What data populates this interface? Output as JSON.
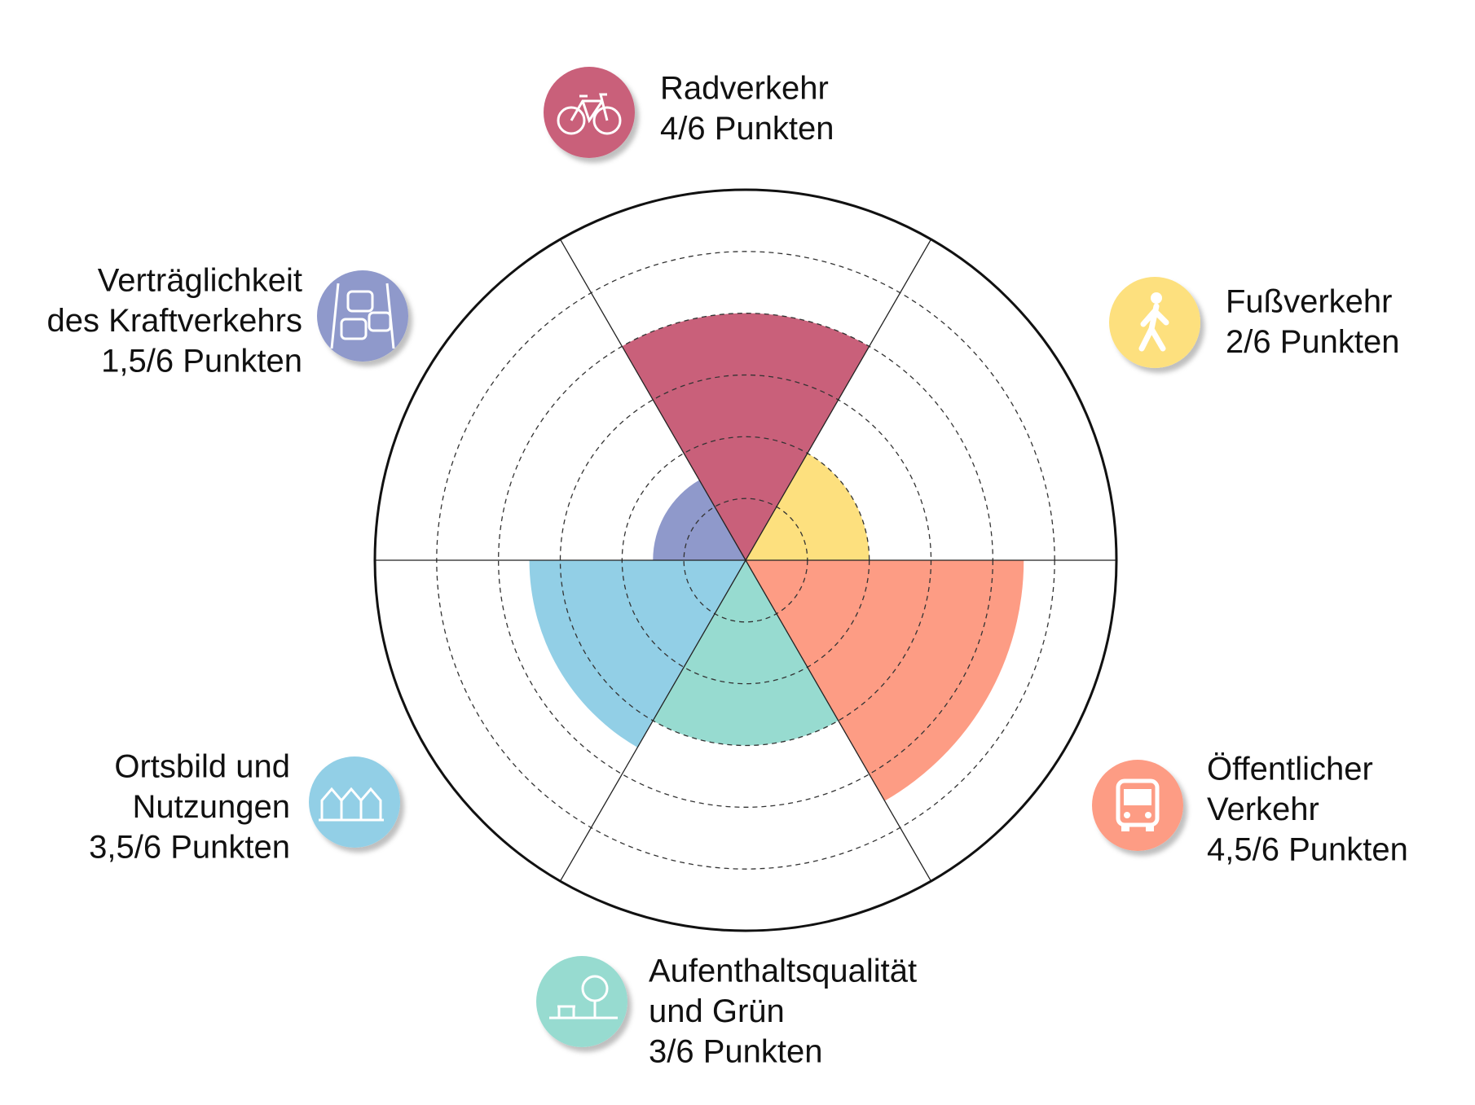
{
  "chart_data": {
    "type": "polar-area",
    "categories": [
      [
        "Radverkehr"
      ],
      [
        "Fußverkehr"
      ],
      [
        "Öffentlicher",
        "Verkehr"
      ],
      [
        "Aufenthaltsqualität",
        "und Grün"
      ],
      [
        "Ortsbild und",
        "Nutzungen"
      ],
      [
        "Verträglichkeit",
        "des Kraftverkehrs"
      ]
    ],
    "values": [
      4,
      2,
      4.5,
      3,
      3.5,
      1.5
    ],
    "value_labels": [
      "4/6 Punkten",
      "2/6 Punkten",
      "4,5/6 Punkten",
      "3/6 Punkten",
      "3,5/6 Punkten",
      "1,5/6 Punkten"
    ],
    "colors": [
      "#c9607a",
      "#fde07e",
      "#fd9c84",
      "#97dbd0",
      "#92cfe6",
      "#8f99cb"
    ],
    "rlim": [
      0,
      6
    ],
    "rticks": [
      1,
      2,
      3,
      4,
      5
    ]
  }
}
